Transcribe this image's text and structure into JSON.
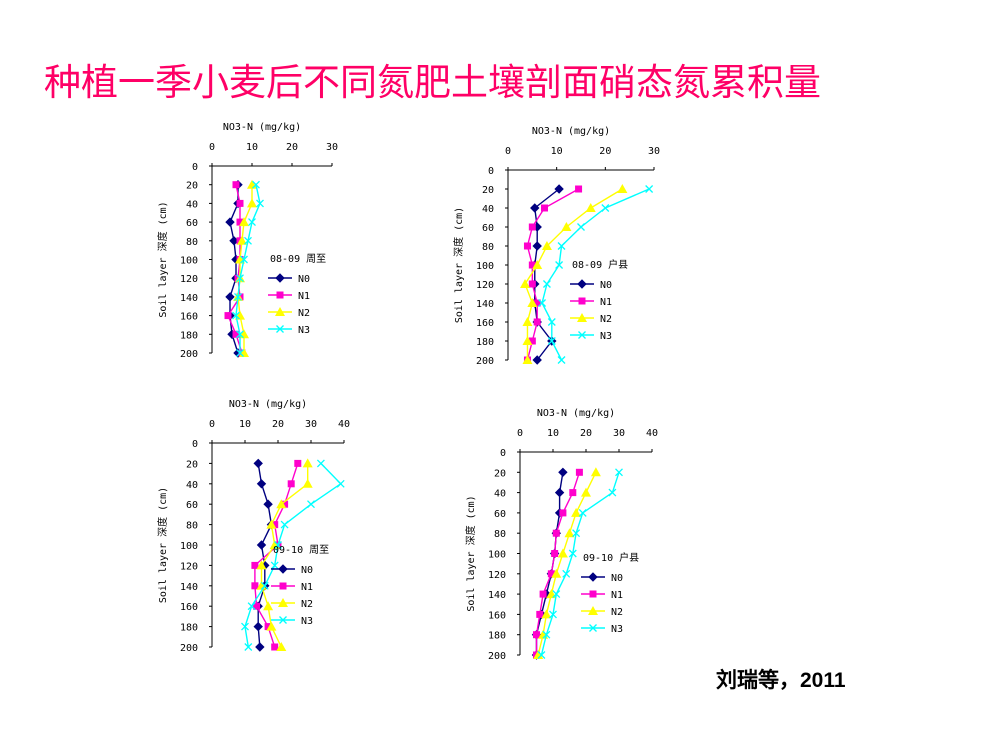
{
  "title": "种植一季小麦后不同氮肥土壤剖面硝态氮累积量",
  "citation": "刘瑞等，2011",
  "series_colors": {
    "N0": "#000080",
    "N1": "#ff00cc",
    "N2": "#ffff00",
    "N3": "#00ffff"
  },
  "series_markers": {
    "N0": "diamond",
    "N1": "square",
    "N2": "triangle",
    "N3": "x"
  },
  "chart_data": [
    {
      "type": "line",
      "panel": "top-left",
      "legend_title": "08-09 周至",
      "xlabel": "NO3-N (mg/kg)",
      "ylabel": "Soil layer 深度 (cm)",
      "xlim": [
        0,
        30
      ],
      "xticks": [
        "0",
        "10",
        "20",
        "30"
      ],
      "ylim": [
        0,
        200
      ],
      "yticks": [
        "0",
        "20",
        "40",
        "60",
        "80",
        "100",
        "120",
        "140",
        "160",
        "180",
        "200"
      ],
      "depths": [
        20,
        40,
        60,
        80,
        100,
        120,
        140,
        160,
        180,
        200
      ],
      "series": [
        {
          "name": "N0",
          "values": [
            6.5,
            6.5,
            4.5,
            5.5,
            6,
            6,
            4.5,
            4.5,
            5,
            6.5
          ]
        },
        {
          "name": "N1",
          "values": [
            6,
            7,
            7,
            7,
            7,
            6.5,
            7,
            4,
            6,
            7.5
          ]
        },
        {
          "name": "N2",
          "values": [
            10,
            10,
            8,
            7.5,
            7,
            7,
            6.5,
            7,
            8,
            8
          ]
        },
        {
          "name": "N3",
          "values": [
            11,
            12,
            10,
            9,
            8,
            7,
            6.5,
            6,
            7,
            7
          ]
        }
      ],
      "grid": false,
      "legend": "right"
    },
    {
      "type": "line",
      "panel": "top-right",
      "legend_title": "08-09 户县",
      "xlabel": "NO3-N (mg/kg)",
      "ylabel": "Soil layer 深度 (cm)",
      "xlim": [
        0,
        30
      ],
      "xticks": [
        "0",
        "10",
        "20",
        "30"
      ],
      "ylim": [
        0,
        200
      ],
      "yticks": [
        "0",
        "20",
        "40",
        "60",
        "80",
        "100",
        "120",
        "140",
        "160",
        "180",
        "200"
      ],
      "depths": [
        20,
        40,
        60,
        80,
        100,
        120,
        140,
        160,
        180,
        200
      ],
      "series": [
        {
          "name": "N0",
          "values": [
            10.5,
            5.5,
            6,
            6,
            5.5,
            5.5,
            5.5,
            6,
            9,
            6
          ]
        },
        {
          "name": "N1",
          "values": [
            14.5,
            7.5,
            5,
            4,
            5,
            5,
            6,
            6,
            5,
            4
          ]
        },
        {
          "name": "N2",
          "values": [
            23.5,
            17,
            12,
            8,
            6,
            3.5,
            5,
            4,
            4,
            4
          ]
        },
        {
          "name": "N3",
          "values": [
            29,
            20,
            15,
            11,
            10.5,
            8,
            7,
            9,
            9,
            11
          ]
        }
      ],
      "grid": false,
      "legend": "right"
    },
    {
      "type": "line",
      "panel": "bottom-left",
      "legend_title": "09-10 周至",
      "xlabel": "NO3-N (mg/kg)",
      "ylabel": "Soil layer 深度 (cm)",
      "xlim": [
        0,
        40
      ],
      "xticks": [
        "0",
        "10",
        "20",
        "30",
        "40"
      ],
      "ylim": [
        0,
        200
      ],
      "yticks": [
        "0",
        "20",
        "40",
        "60",
        "80",
        "100",
        "120",
        "140",
        "160",
        "180",
        "200"
      ],
      "depths": [
        20,
        40,
        60,
        80,
        100,
        120,
        140,
        160,
        180,
        200
      ],
      "series": [
        {
          "name": "N0",
          "values": [
            14,
            15,
            17,
            18,
            15,
            16,
            16,
            14,
            14,
            14.5
          ]
        },
        {
          "name": "N1",
          "values": [
            26,
            24,
            22,
            19,
            20,
            13,
            13,
            13.5,
            17,
            19
          ]
        },
        {
          "name": "N2",
          "values": [
            29,
            29,
            21,
            18,
            19,
            15,
            15,
            17,
            18,
            21
          ]
        },
        {
          "name": "N3",
          "values": [
            33,
            39,
            30,
            22,
            20,
            19,
            16,
            12,
            10,
            11
          ]
        }
      ],
      "grid": false,
      "legend": "right"
    },
    {
      "type": "line",
      "panel": "bottom-right",
      "legend_title": "09-10 户县",
      "xlabel": "NO3-N (mg/kg)",
      "ylabel": "Soil layer 深度 (cm)",
      "xlim": [
        0,
        40
      ],
      "xticks": [
        "0",
        "10",
        "20",
        "30",
        "40"
      ],
      "ylim": [
        0,
        200
      ],
      "yticks": [
        "0",
        "20",
        "40",
        "60",
        "80",
        "100",
        "120",
        "140",
        "160",
        "180",
        "200"
      ],
      "depths": [
        20,
        40,
        60,
        80,
        100,
        120,
        140,
        160,
        180,
        200
      ],
      "series": [
        {
          "name": "N0",
          "values": [
            13,
            12,
            12,
            11,
            10.5,
            9.5,
            8,
            6.5,
            5,
            5
          ]
        },
        {
          "name": "N1",
          "values": [
            18,
            16,
            13,
            11,
            10.5,
            9.5,
            7,
            6,
            5,
            5
          ]
        },
        {
          "name": "N2",
          "values": [
            23,
            20,
            17,
            15,
            13,
            11,
            9.5,
            8,
            7,
            5.5
          ]
        },
        {
          "name": "N3",
          "values": [
            30,
            28,
            19,
            17,
            16,
            14,
            11,
            10,
            8,
            6.5
          ]
        }
      ],
      "grid": false,
      "legend": "right"
    }
  ]
}
